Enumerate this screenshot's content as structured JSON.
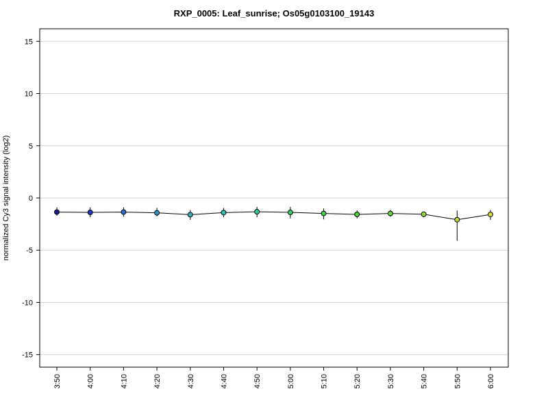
{
  "chart_data": {
    "type": "line",
    "title": "RXP_0005: Leaf_sunrise; Os05g0103100_19143",
    "xlabel": "",
    "ylabel": "normalized Cy3 signal intensity (log2)",
    "ylim": [
      -16.2,
      16.2
    ],
    "yticks": [
      -15,
      -10,
      -5,
      0,
      5,
      10,
      15
    ],
    "grid": true,
    "categories": [
      "3:50",
      "4:00",
      "4:10",
      "4:20",
      "4:30",
      "4:40",
      "4:50",
      "5:00",
      "5:10",
      "5:20",
      "5:30",
      "5:40",
      "5:50",
      "6:00"
    ],
    "values": [
      -1.35,
      -1.38,
      -1.35,
      -1.42,
      -1.6,
      -1.4,
      -1.32,
      -1.38,
      -1.48,
      -1.57,
      -1.48,
      -1.56,
      -2.08,
      -1.58
    ],
    "error_low": [
      -1.7,
      -1.85,
      -1.8,
      -1.75,
      -2.1,
      -1.85,
      -1.85,
      -1.95,
      -2.05,
      -1.95,
      -1.8,
      -1.85,
      -4.1,
      -2.1
    ],
    "error_high": [
      -0.9,
      -0.9,
      -0.9,
      -0.95,
      -1.15,
      -0.95,
      -0.85,
      -0.85,
      -1.0,
      -1.2,
      -1.15,
      -1.3,
      -1.2,
      -1.15
    ],
    "colors": [
      "#1a1a8c",
      "#1f3bcc",
      "#2a6fd0",
      "#2d93c8",
      "#2fb0c0",
      "#2fc2b0",
      "#2fcf92",
      "#33d06e",
      "#3fd24e",
      "#4fd33a",
      "#6ed63a",
      "#95dc3a",
      "#b8da38",
      "#d8dc3a"
    ]
  }
}
